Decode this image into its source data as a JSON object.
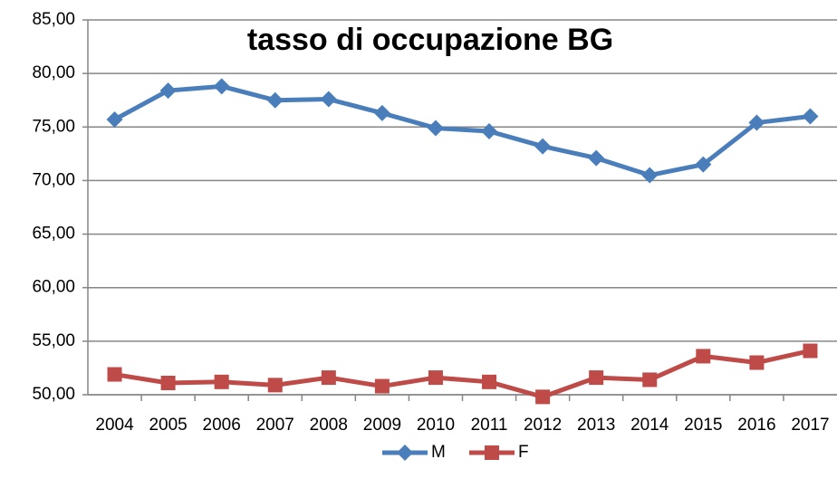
{
  "chart_data": {
    "type": "line",
    "title": "tasso di occupazione BG",
    "categories": [
      "2004",
      "2005",
      "2006",
      "2007",
      "2008",
      "2009",
      "2010",
      "2011",
      "2012",
      "2013",
      "2014",
      "2015",
      "2016",
      "2017"
    ],
    "series": [
      {
        "name": "M",
        "color": "#4a7ebb",
        "marker": "diamond",
        "values": [
          75.7,
          78.4,
          78.8,
          77.5,
          77.6,
          76.3,
          74.9,
          74.6,
          73.2,
          72.1,
          70.5,
          71.5,
          75.4,
          76.0
        ]
      },
      {
        "name": "F",
        "color": "#be4b48",
        "marker": "square",
        "values": [
          51.9,
          51.1,
          51.2,
          50.9,
          51.6,
          50.8,
          51.6,
          51.2,
          49.8,
          51.6,
          51.4,
          53.6,
          53.0,
          54.1
        ]
      }
    ],
    "ylim": [
      50,
      85
    ],
    "yticks": [
      {
        "value": 50,
        "label": "50,00"
      },
      {
        "value": 55,
        "label": "55,00"
      },
      {
        "value": 60,
        "label": "60,00"
      },
      {
        "value": 65,
        "label": "65,00"
      },
      {
        "value": 70,
        "label": "70,00"
      },
      {
        "value": 75,
        "label": "75,00"
      },
      {
        "value": 80,
        "label": "80,00"
      },
      {
        "value": 85,
        "label": "85,00"
      }
    ],
    "grid": true,
    "legend": "bottom"
  }
}
